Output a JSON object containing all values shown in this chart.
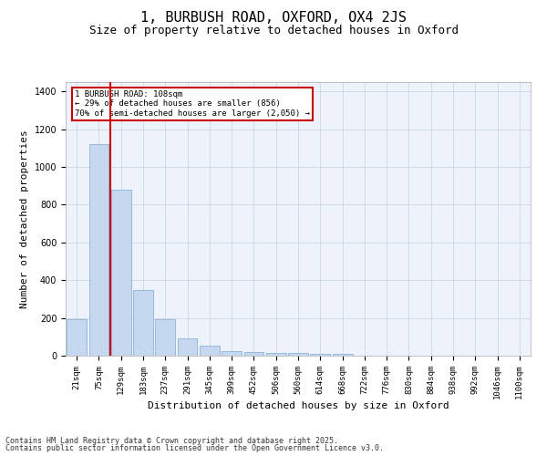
{
  "title": "1, BURBUSH ROAD, OXFORD, OX4 2JS",
  "subtitle": "Size of property relative to detached houses in Oxford",
  "xlabel": "Distribution of detached houses by size in Oxford",
  "ylabel": "Number of detached properties",
  "categories": [
    "21sqm",
    "75sqm",
    "129sqm",
    "183sqm",
    "237sqm",
    "291sqm",
    "345sqm",
    "399sqm",
    "452sqm",
    "506sqm",
    "560sqm",
    "614sqm",
    "668sqm",
    "722sqm",
    "776sqm",
    "830sqm",
    "884sqm",
    "938sqm",
    "992sqm",
    "1046sqm",
    "1100sqm"
  ],
  "values": [
    195,
    1120,
    880,
    350,
    195,
    90,
    55,
    22,
    20,
    15,
    15,
    10,
    10,
    0,
    0,
    0,
    0,
    0,
    0,
    0,
    0
  ],
  "bar_color": "#c5d8f0",
  "bar_edge_color": "#7aaad0",
  "vline_color": "#cc0000",
  "ylim": [
    0,
    1450
  ],
  "annotation_text": "1 BURBUSH ROAD: 108sqm\n← 29% of detached houses are smaller (856)\n70% of semi-detached houses are larger (2,050) →",
  "annotation_box_color": "#cc0000",
  "footer_line1": "Contains HM Land Registry data © Crown copyright and database right 2025.",
  "footer_line2": "Contains public sector information licensed under the Open Government Licence v3.0.",
  "bg_color": "#eef2fb",
  "grid_color": "#c8d0e0",
  "title_fontsize": 11,
  "subtitle_fontsize": 9,
  "ylabel_fontsize": 8,
  "xlabel_fontsize": 8,
  "tick_fontsize": 6.5,
  "footer_fontsize": 6
}
